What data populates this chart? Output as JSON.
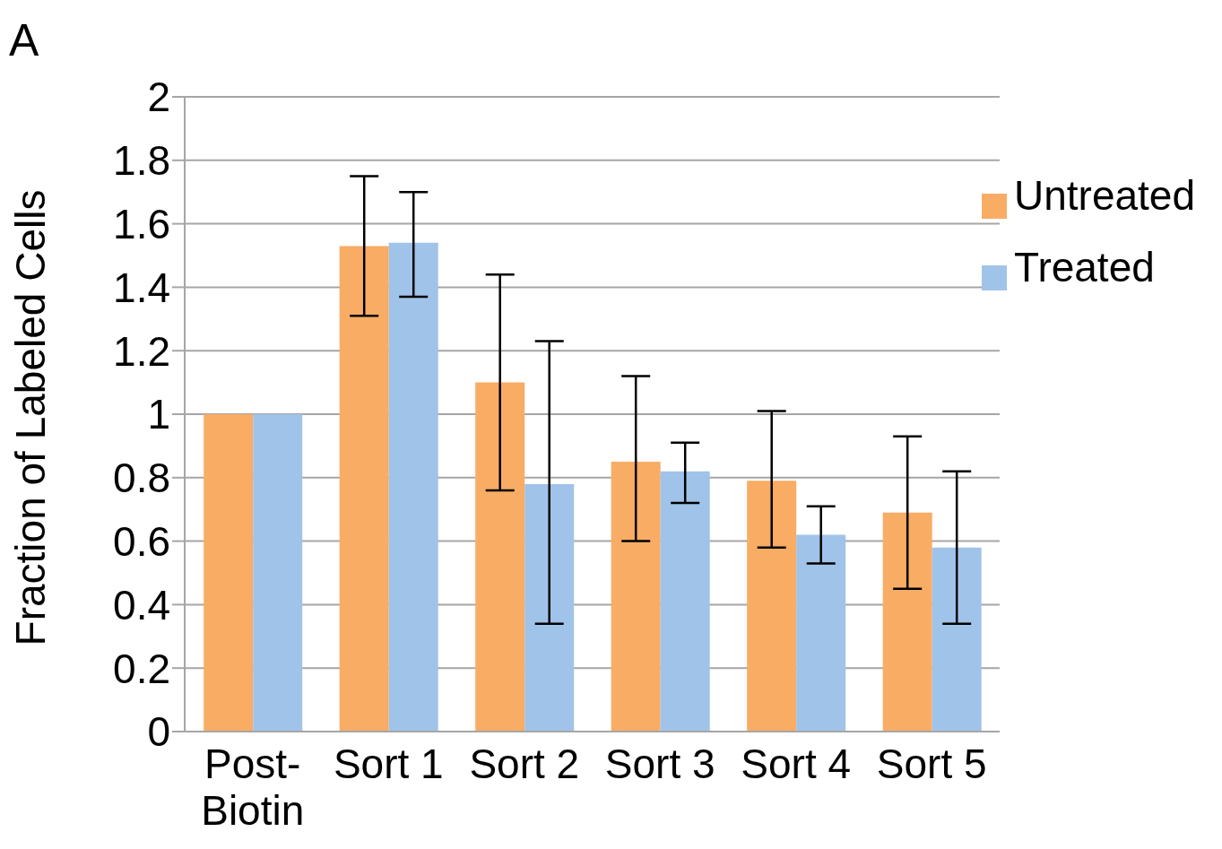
{
  "chart_data": {
    "type": "bar",
    "ylabel": "Fraction of Labeled Cells",
    "annotations": [
      "A"
    ],
    "categories": [
      "Post-Biotin",
      "Sort 1",
      "Sort 2",
      "Sort 3",
      "Sort 4",
      "Sort 5"
    ],
    "series": [
      {
        "name": "Untreated",
        "color": "#f9ac64",
        "values": [
          1,
          1.53,
          1.1,
          0.85,
          0.79,
          0.69
        ],
        "errors": [
          null,
          [
            1.31,
            1.75
          ],
          [
            0.76,
            1.44
          ],
          [
            0.6,
            1.12
          ],
          [
            0.58,
            1.01
          ],
          [
            0.45,
            0.93
          ]
        ]
      },
      {
        "name": "Treated",
        "color": "#a0c3e9",
        "values": [
          1,
          1.54,
          0.78,
          0.82,
          0.62,
          0.58
        ],
        "errors": [
          null,
          [
            1.37,
            1.7
          ],
          [
            0.34,
            1.23
          ],
          [
            0.72,
            0.91
          ],
          [
            0.53,
            0.71
          ],
          [
            0.34,
            0.82
          ]
        ]
      }
    ],
    "ylim": [
      0,
      2
    ],
    "yticks": [
      0,
      0.2,
      0.4,
      0.6,
      0.8,
      1,
      1.2,
      1.4,
      1.6,
      1.8,
      2
    ],
    "grid": "y",
    "legend": "top right"
  }
}
